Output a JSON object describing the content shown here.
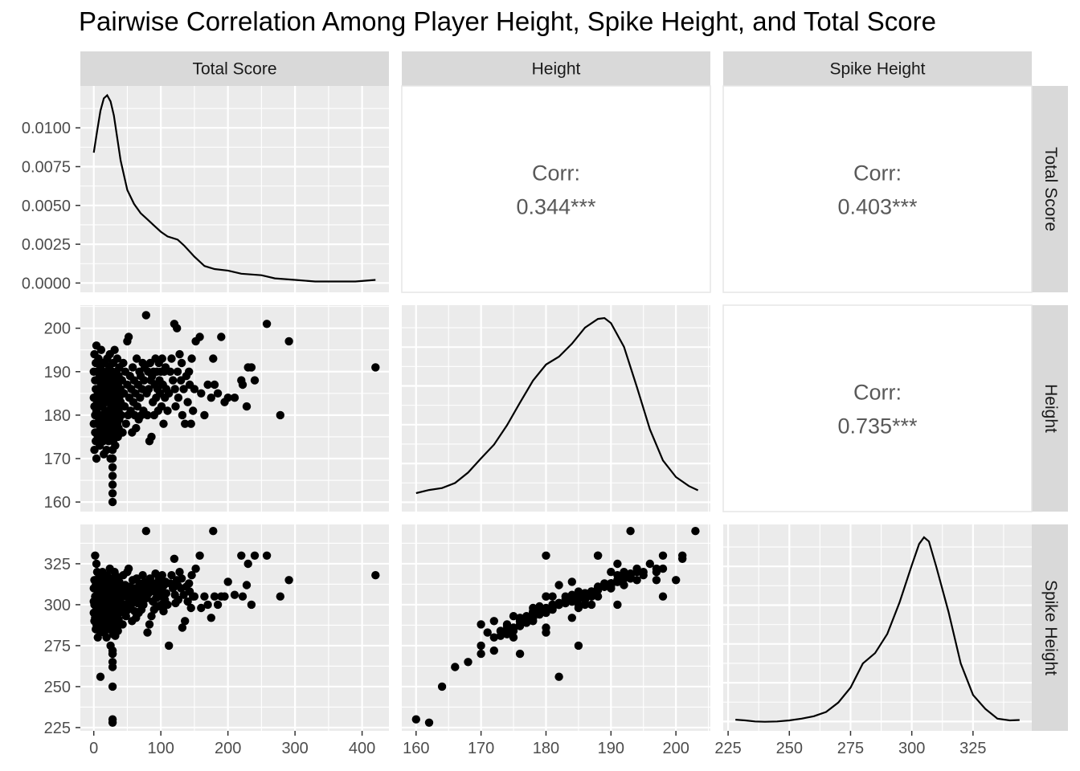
{
  "chart_data": {
    "type": "scatter-matrix",
    "title": "Pairwise Correlation Among Player Height, Spike Height, and Total Score",
    "variables": [
      "Total Score",
      "Height",
      "Spike Height"
    ],
    "axes": {
      "Total Score": {
        "range": [
          -20,
          440
        ],
        "ticks": [
          0,
          100,
          200,
          300,
          400
        ],
        "tick_labels": [
          "0",
          "100",
          "200",
          "300",
          "400"
        ]
      },
      "Height": {
        "range": [
          157.8,
          205.3
        ],
        "ticks": [
          160,
          170,
          180,
          190,
          200
        ],
        "tick_labels": [
          "160",
          "170",
          "180",
          "190",
          "200"
        ]
      },
      "Spike Height": {
        "range": [
          223,
          349
        ],
        "ticks": [
          225,
          250,
          275,
          300,
          325
        ],
        "tick_labels": [
          "225",
          "250",
          "275",
          "300",
          "325"
        ]
      }
    },
    "density_axis": {
      "range": [
        -0.0006,
        0.0127
      ],
      "ticks": [
        0.0,
        0.0025,
        0.005,
        0.0075,
        0.01
      ],
      "tick_labels": [
        "0.0000",
        "0.0025",
        "0.0050",
        "0.0075",
        "0.0100"
      ]
    },
    "correlations": [
      {
        "row": "Total Score",
        "col": "Height",
        "label": "Corr:",
        "value": "0.344***"
      },
      {
        "row": "Total Score",
        "col": "Spike Height",
        "label": "Corr:",
        "value": "0.403***"
      },
      {
        "row": "Height",
        "col": "Spike Height",
        "label": "Corr:",
        "value": "0.735***"
      }
    ],
    "densities": {
      "Total Score": [
        [
          0,
          0.0084
        ],
        [
          5,
          0.0098
        ],
        [
          10,
          0.0111
        ],
        [
          15,
          0.0119
        ],
        [
          20,
          0.0121
        ],
        [
          25,
          0.0117
        ],
        [
          30,
          0.0108
        ],
        [
          40,
          0.0079
        ],
        [
          50,
          0.006
        ],
        [
          60,
          0.0051
        ],
        [
          70,
          0.0045
        ],
        [
          80,
          0.0041
        ],
        [
          90,
          0.0037
        ],
        [
          100,
          0.0033
        ],
        [
          110,
          0.003
        ],
        [
          125,
          0.0028
        ],
        [
          135,
          0.0024
        ],
        [
          150,
          0.0017
        ],
        [
          165,
          0.0011
        ],
        [
          180,
          0.0009
        ],
        [
          200,
          0.0008
        ],
        [
          220,
          0.0006
        ],
        [
          250,
          0.0005
        ],
        [
          270,
          0.0003
        ],
        [
          300,
          0.0002
        ],
        [
          330,
          0.0001
        ],
        [
          360,
          0.0001
        ],
        [
          390,
          0.0001
        ],
        [
          420,
          0.0002
        ]
      ],
      "Height": [
        [
          160,
          0.0037
        ],
        [
          162,
          0.0048
        ],
        [
          164,
          0.0055
        ],
        [
          166,
          0.0073
        ],
        [
          168,
          0.011
        ],
        [
          170,
          0.016
        ],
        [
          172,
          0.0209
        ],
        [
          174,
          0.0278
        ],
        [
          176,
          0.0358
        ],
        [
          178,
          0.0436
        ],
        [
          180,
          0.0493
        ],
        [
          182,
          0.0521
        ],
        [
          184,
          0.0567
        ],
        [
          186,
          0.0624
        ],
        [
          188,
          0.0655
        ],
        [
          189,
          0.0658
        ],
        [
          190,
          0.064
        ],
        [
          192,
          0.0556
        ],
        [
          194,
          0.0413
        ],
        [
          196,
          0.0263
        ],
        [
          198,
          0.0153
        ],
        [
          200,
          0.0094
        ],
        [
          202,
          0.0062
        ],
        [
          203.4,
          0.0047
        ]
      ],
      "Spike Height": [
        [
          228,
          0.0009
        ],
        [
          232,
          0.0007
        ],
        [
          236,
          0.0004
        ],
        [
          240,
          0.0003
        ],
        [
          245,
          0.0004
        ],
        [
          250,
          0.0007
        ],
        [
          255,
          0.0012
        ],
        [
          260,
          0.0019
        ],
        [
          265,
          0.0031
        ],
        [
          270,
          0.0058
        ],
        [
          275,
          0.0101
        ],
        [
          280,
          0.017
        ],
        [
          285,
          0.02
        ],
        [
          290,
          0.0255
        ],
        [
          295,
          0.0345
        ],
        [
          300,
          0.0452
        ],
        [
          303,
          0.0513
        ],
        [
          305,
          0.0532
        ],
        [
          307,
          0.052
        ],
        [
          310,
          0.0448
        ],
        [
          315,
          0.0318
        ],
        [
          320,
          0.017
        ],
        [
          325,
          0.008
        ],
        [
          330,
          0.004
        ],
        [
          335,
          0.0012
        ],
        [
          340,
          0.0007
        ],
        [
          344,
          0.0008
        ]
      ]
    },
    "points": [
      [
        0,
        178,
        295
      ],
      [
        0,
        184,
        302
      ],
      [
        0,
        190,
        310
      ],
      [
        1,
        172,
        290
      ],
      [
        1,
        182,
        300
      ],
      [
        1,
        194,
        315
      ],
      [
        2,
        176,
        292
      ],
      [
        2,
        188,
        305
      ],
      [
        2,
        180,
        330
      ],
      [
        3,
        186,
        300
      ],
      [
        3,
        174,
        285
      ],
      [
        3,
        192,
        312
      ],
      [
        4,
        181,
        297
      ],
      [
        4,
        196,
        325
      ],
      [
        4,
        170,
        288
      ],
      [
        5,
        183,
        302
      ],
      [
        5,
        178,
        295
      ],
      [
        5,
        190,
        320
      ],
      [
        6,
        185,
        308
      ],
      [
        6,
        175,
        280
      ],
      [
        6,
        188,
        311
      ],
      [
        7,
        180,
        298
      ],
      [
        7,
        193,
        316
      ],
      [
        7,
        176,
        290
      ],
      [
        8,
        182,
        301
      ],
      [
        8,
        186,
        306
      ],
      [
        8,
        179,
        299
      ],
      [
        9,
        189,
        313
      ],
      [
        9,
        173,
        284
      ],
      [
        9,
        184,
        304
      ],
      [
        10,
        191,
        314
      ],
      [
        10,
        177,
        293
      ],
      [
        10,
        182,
        256
      ],
      [
        11,
        187,
        307
      ],
      [
        11,
        180,
        297
      ],
      [
        11,
        195,
        318
      ],
      [
        12,
        176,
        291
      ],
      [
        12,
        185,
        305
      ],
      [
        12,
        188,
        310
      ],
      [
        13,
        182,
        300
      ],
      [
        13,
        178,
        294
      ],
      [
        13,
        192,
        320
      ],
      [
        14,
        174,
        287
      ],
      [
        14,
        190,
        312
      ],
      [
        14,
        183,
        303
      ],
      [
        15,
        186,
        306
      ],
      [
        15,
        180,
        296
      ],
      [
        15,
        171,
        283
      ],
      [
        16,
        188,
        309
      ],
      [
        16,
        184,
        303
      ],
      [
        16,
        177,
        292
      ],
      [
        17,
        192,
        316
      ],
      [
        17,
        181,
        299
      ],
      [
        17,
        175,
        285
      ],
      [
        18,
        185,
        304
      ],
      [
        18,
        189,
        311
      ],
      [
        18,
        179,
        296
      ],
      [
        19,
        183,
        302
      ],
      [
        19,
        172,
        280
      ],
      [
        19,
        187,
        308
      ],
      [
        20,
        190,
        313
      ],
      [
        20,
        178,
        293
      ],
      [
        20,
        193,
        318
      ],
      [
        21,
        176,
        290
      ],
      [
        21,
        184,
        304
      ],
      [
        21,
        186,
        305
      ],
      [
        22,
        181,
        300
      ],
      [
        22,
        174,
        285
      ],
      [
        22,
        188,
        310
      ],
      [
        23,
        180,
        295
      ],
      [
        23,
        191,
        315
      ],
      [
        23,
        177,
        289
      ],
      [
        24,
        185,
        306
      ],
      [
        24,
        183,
        301
      ],
      [
        24,
        194,
        322
      ],
      [
        25,
        170,
        275
      ],
      [
        25,
        187,
        308
      ],
      [
        25,
        179,
        295
      ],
      [
        26,
        182,
        300
      ],
      [
        26,
        186,
        303
      ],
      [
        26,
        175,
        286
      ],
      [
        27,
        189,
        312
      ],
      [
        27,
        181,
        298
      ],
      [
        27,
        178,
        292
      ],
      [
        28,
        184,
        302
      ],
      [
        28,
        160,
        230
      ],
      [
        28,
        162,
        228
      ],
      [
        28,
        164,
        250
      ],
      [
        28,
        166,
        262
      ],
      [
        28,
        168,
        265
      ],
      [
        28,
        170,
        270
      ],
      [
        28,
        172,
        272
      ],
      [
        28,
        186,
        305
      ],
      [
        28,
        176,
        270
      ],
      [
        28,
        190,
        310
      ],
      [
        29,
        180,
        297
      ],
      [
        29,
        174,
        282
      ],
      [
        29,
        192,
        316
      ],
      [
        30,
        183,
        301
      ],
      [
        30,
        187,
        307
      ],
      [
        30,
        177,
        290
      ],
      [
        31,
        185,
        304
      ],
      [
        31,
        179,
        294
      ],
      [
        31,
        195,
        320
      ],
      [
        32,
        181,
        299
      ],
      [
        32,
        188,
        309
      ],
      [
        32,
        173,
        281
      ],
      [
        33,
        182,
        300
      ],
      [
        33,
        186,
        306
      ],
      [
        33,
        176,
        287
      ],
      [
        34,
        190,
        312
      ],
      [
        34,
        184,
        303
      ],
      [
        34,
        180,
        296
      ],
      [
        35,
        178,
        292
      ],
      [
        35,
        193,
        317
      ],
      [
        35,
        185,
        305
      ],
      [
        36,
        187,
        308
      ],
      [
        36,
        175,
        284
      ],
      [
        36,
        182,
        301
      ],
      [
        37,
        189,
        311
      ],
      [
        37,
        181,
        298
      ],
      [
        37,
        177,
        291
      ],
      [
        38,
        184,
        302
      ],
      [
        38,
        191,
        314
      ],
      [
        38,
        179,
        295
      ],
      [
        40,
        186,
        306
      ],
      [
        40,
        183,
        301
      ],
      [
        41,
        180,
        296
      ],
      [
        42,
        188,
        309
      ],
      [
        43,
        176,
        288
      ],
      [
        44,
        192,
        318
      ],
      [
        45,
        185,
        305
      ],
      [
        46,
        182,
        300
      ],
      [
        47,
        190,
        312
      ],
      [
        48,
        178,
        293
      ],
      [
        50,
        187,
        308
      ],
      [
        50,
        197,
        320
      ],
      [
        51,
        180,
        297
      ],
      [
        52,
        198,
        322
      ],
      [
        53,
        184,
        303
      ],
      [
        54,
        189,
        311
      ],
      [
        55,
        181,
        299
      ],
      [
        56,
        186,
        306
      ],
      [
        57,
        176,
        290
      ],
      [
        58,
        191,
        315
      ],
      [
        59,
        183,
        302
      ],
      [
        60,
        188,
        310
      ],
      [
        61,
        180,
        296
      ],
      [
        62,
        185,
        305
      ],
      [
        63,
        177,
        292
      ],
      [
        64,
        193,
        316
      ],
      [
        65,
        182,
        301
      ],
      [
        66,
        187,
        308
      ],
      [
        67,
        179,
        295
      ],
      [
        68,
        190,
        313
      ],
      [
        69,
        184,
        303
      ],
      [
        70,
        189,
        311
      ],
      [
        71,
        180,
        297
      ],
      [
        72,
        186,
        306
      ],
      [
        73,
        192,
        318
      ],
      [
        74,
        181,
        300
      ],
      [
        75,
        188,
        310
      ],
      [
        76,
        191,
        314
      ],
      [
        78,
        203,
        345
      ],
      [
        79,
        185,
        304
      ],
      [
        80,
        180,
        283
      ],
      [
        81,
        190,
        312
      ],
      [
        82,
        186,
        307
      ],
      [
        83,
        174,
        288
      ],
      [
        84,
        192,
        316
      ],
      [
        85,
        188,
        310
      ],
      [
        86,
        175,
        293
      ],
      [
        87,
        189,
        311
      ],
      [
        88,
        183,
        302
      ],
      [
        89,
        190,
        313
      ],
      [
        90,
        180,
        297
      ],
      [
        91,
        187,
        308
      ],
      [
        92,
        193,
        319
      ],
      [
        93,
        184,
        304
      ],
      [
        94,
        190,
        312
      ],
      [
        95,
        186,
        307
      ],
      [
        96,
        181,
        299
      ],
      [
        97,
        192,
        316
      ],
      [
        98,
        188,
        310
      ],
      [
        99,
        185,
        305
      ],
      [
        100,
        190,
        313
      ],
      [
        101,
        182,
        300
      ],
      [
        102,
        193,
        318
      ],
      [
        103,
        187,
        308
      ],
      [
        104,
        178,
        296
      ],
      [
        105,
        190,
        312
      ],
      [
        106,
        184,
        303
      ],
      [
        107,
        191,
        314
      ],
      [
        108,
        186,
        307
      ],
      [
        110,
        181,
        300
      ],
      [
        112,
        185,
        275
      ],
      [
        114,
        190,
        313
      ],
      [
        116,
        193,
        318
      ],
      [
        118,
        188,
        310
      ],
      [
        120,
        201,
        328
      ],
      [
        121,
        186,
        306
      ],
      [
        122,
        182,
        301
      ],
      [
        124,
        200,
        315
      ],
      [
        125,
        190,
        312
      ],
      [
        126,
        184,
        303
      ],
      [
        128,
        194,
        320
      ],
      [
        130,
        188,
        310
      ],
      [
        131,
        192,
        316
      ],
      [
        132,
        180,
        286
      ],
      [
        134,
        186,
        306
      ],
      [
        136,
        178,
        290
      ],
      [
        138,
        189,
        311
      ],
      [
        140,
        183,
        302
      ],
      [
        142,
        190,
        313
      ],
      [
        143,
        187,
        308
      ],
      [
        145,
        178,
        298
      ],
      [
        146,
        193,
        318
      ],
      [
        148,
        181,
        305
      ],
      [
        150,
        186,
        305
      ],
      [
        152,
        197,
        322
      ],
      [
        158,
        198,
        330
      ],
      [
        160,
        185,
        298
      ],
      [
        165,
        180,
        305
      ],
      [
        170,
        187,
        300
      ],
      [
        175,
        184,
        292
      ],
      [
        178,
        193,
        345
      ],
      [
        180,
        187,
        305
      ],
      [
        185,
        185,
        300
      ],
      [
        190,
        198,
        305
      ],
      [
        195,
        183,
        305
      ],
      [
        200,
        184,
        314
      ],
      [
        210,
        184,
        306
      ],
      [
        220,
        188,
        330
      ],
      [
        222,
        187,
        305
      ],
      [
        228,
        182,
        312
      ],
      [
        230,
        191,
        325
      ],
      [
        235,
        191,
        300
      ],
      [
        240,
        188,
        330
      ],
      [
        258,
        201,
        330
      ],
      [
        278,
        180,
        305
      ],
      [
        291,
        197,
        315
      ],
      [
        420,
        191,
        318
      ]
    ]
  }
}
